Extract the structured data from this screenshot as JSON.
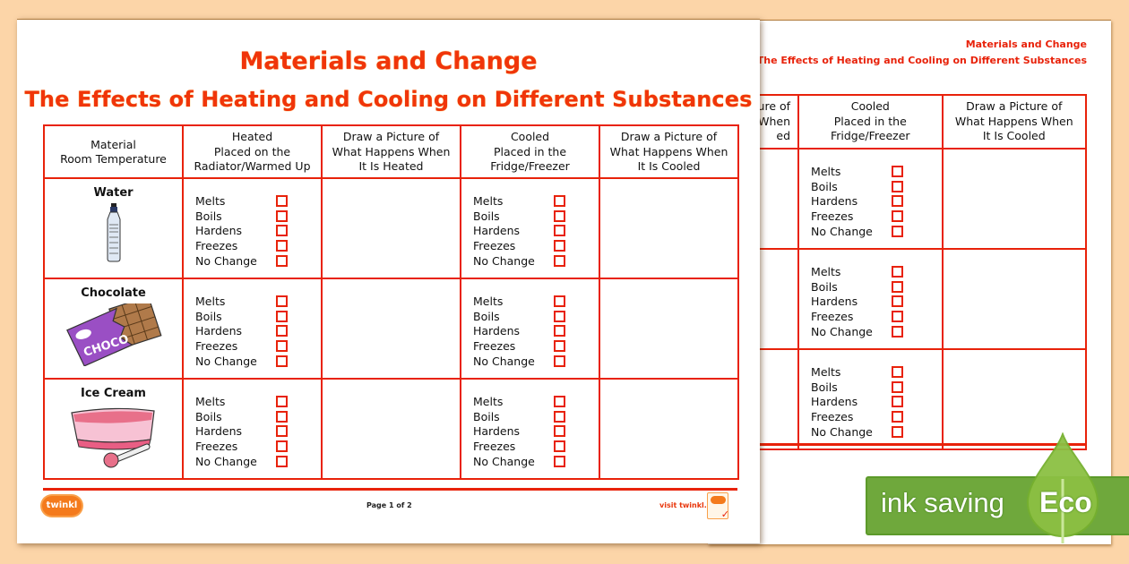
{
  "front_page": {
    "title": "Materials and Change",
    "subtitle": "The Effects of Heating and Cooling on Different Substances",
    "table": {
      "headers": [
        [
          "Material",
          "Room Temperature"
        ],
        [
          "Heated",
          "Placed on the",
          "Radiator/Warmed Up"
        ],
        [
          "Draw a Picture of",
          "What Happens When",
          "It Is Heated"
        ],
        [
          "Cooled",
          "Placed in the",
          "Fridge/Freezer"
        ],
        [
          "Draw a Picture of",
          "What Happens When",
          "It Is Cooled"
        ]
      ],
      "rows": [
        {
          "material": "Water",
          "image": "water-bottle"
        },
        {
          "material": "Chocolate",
          "image": "chocolate-bar"
        },
        {
          "material": "Ice Cream",
          "image": "ice-cream-tub"
        }
      ],
      "options": [
        "Melts",
        "Boils",
        "Hardens",
        "Freezes",
        "No Change"
      ]
    },
    "footer": {
      "logo": "twinkl",
      "page": "Page 1 of 2",
      "visit": "visit twinkl.ie"
    }
  },
  "back_page": {
    "title": "Materials and Change",
    "subtitle": "The Effects of Heating and Cooling on Different Substances",
    "table": {
      "headers": [
        [
          "ure of",
          "s When",
          "ed"
        ],
        [
          "Cooled",
          "Placed in the",
          "Fridge/Freezer"
        ],
        [
          "Draw a Picture of",
          "What Happens When",
          "It Is Cooled"
        ]
      ],
      "options": [
        "Melts",
        "Boils",
        "Hardens",
        "Freezes",
        "No Change"
      ]
    }
  },
  "eco_badge": {
    "text": "ink saving",
    "label": "Eco",
    "color": "#6fa83c"
  },
  "colors": {
    "accent": "#e8220a",
    "background": "#fcd5a8"
  }
}
